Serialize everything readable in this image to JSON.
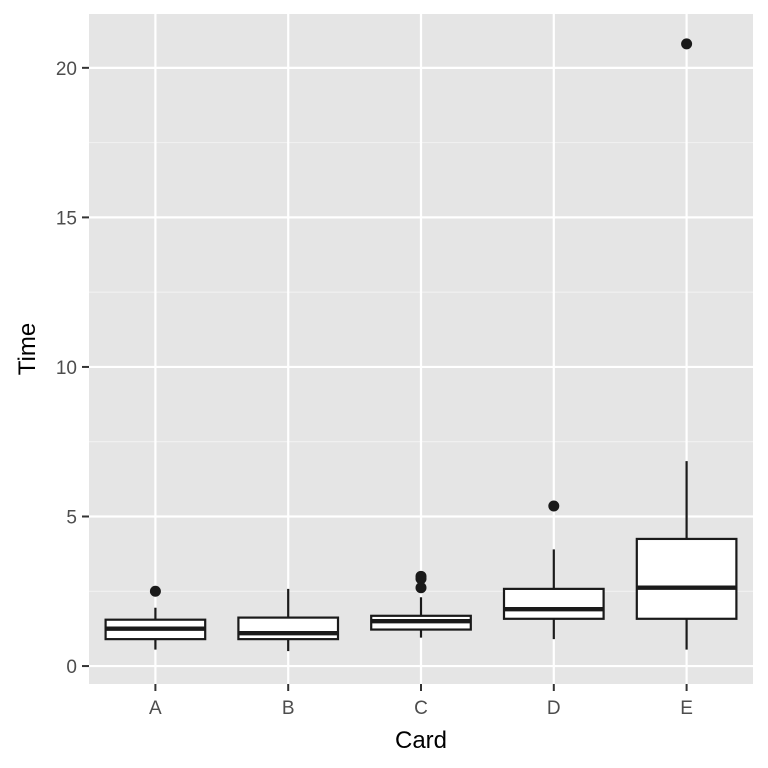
{
  "chart_data": {
    "type": "boxplot",
    "title": "",
    "xlabel": "Card",
    "ylabel": "Time",
    "ylim": [
      -0.6,
      21.8
    ],
    "yticks": [
      0,
      5,
      10,
      15,
      20
    ],
    "ytick_labels": [
      "0",
      "5",
      "10",
      "15",
      "20"
    ],
    "categories": [
      "A",
      "B",
      "C",
      "D",
      "E"
    ],
    "grid": true,
    "legend": "none",
    "boxes": [
      {
        "category": "A",
        "whisker_low": 0.55,
        "q1": 0.9,
        "median": 1.25,
        "q3": 1.55,
        "whisker_high": 1.95,
        "outliers": [
          2.5
        ]
      },
      {
        "category": "B",
        "whisker_low": 0.5,
        "q1": 0.9,
        "median": 1.1,
        "q3": 1.62,
        "whisker_high": 2.58,
        "outliers": []
      },
      {
        "category": "C",
        "whisker_low": 0.95,
        "q1": 1.22,
        "median": 1.5,
        "q3": 1.68,
        "whisker_high": 2.3,
        "outliers": [
          2.62,
          2.92,
          3.0
        ]
      },
      {
        "category": "D",
        "whisker_low": 0.9,
        "q1": 1.58,
        "median": 1.9,
        "q3": 2.58,
        "whisker_high": 3.9,
        "outliers": [
          5.35
        ]
      },
      {
        "category": "E",
        "whisker_low": 0.55,
        "q1": 1.58,
        "median": 2.62,
        "q3": 4.25,
        "whisker_high": 6.85,
        "outliers": [
          20.8
        ]
      }
    ],
    "colors": {
      "panel_background": "#e5e5e5",
      "grid_major": "#ffffff",
      "grid_minor": "#f2f2f2",
      "box_fill": "#ffffff",
      "box_stroke": "#1a1a1a",
      "outlier": "#1a1a1a",
      "tick_label": "#4d4d4d",
      "axis_title": "#000000"
    }
  }
}
